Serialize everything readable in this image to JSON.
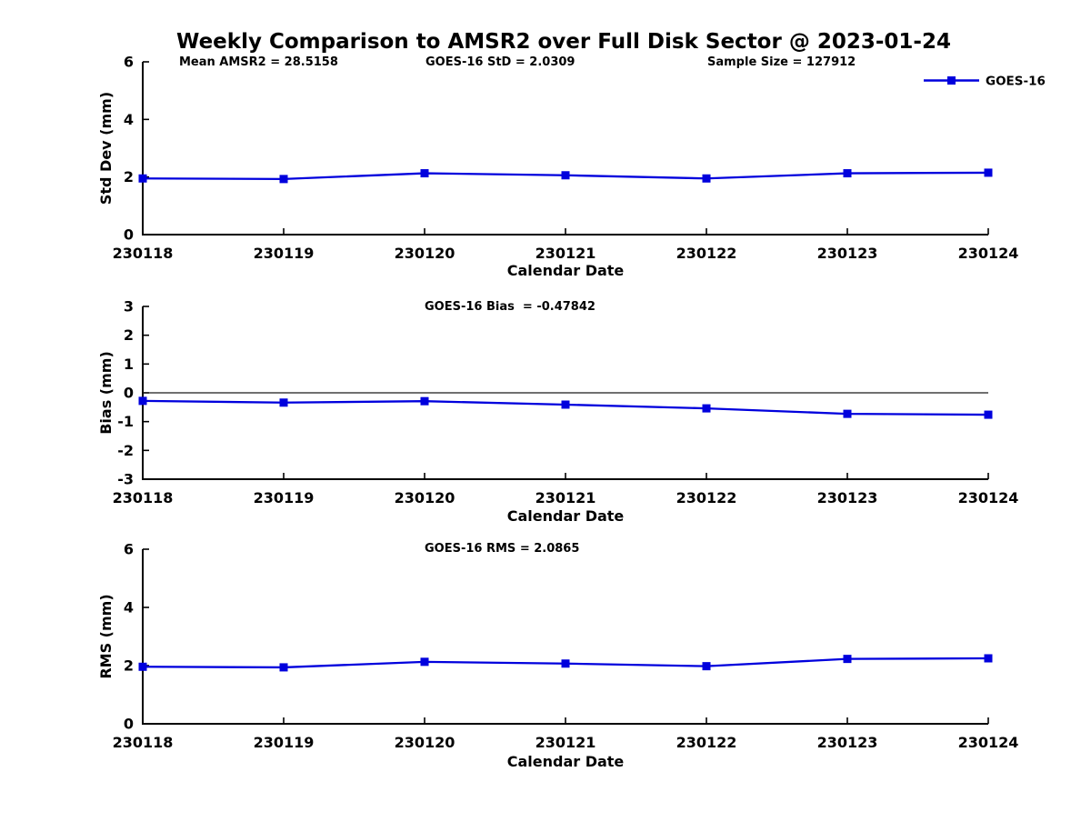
{
  "title": "Weekly Comparison to AMSR2 over Full Disk Sector @ 2023-01-24",
  "annotations": {
    "mean_amsr2": "Mean AMSR2 = 28.5158",
    "goes16_std": "GOES-16 StD = 2.0309",
    "sample_size": "Sample Size = 127912"
  },
  "legend": {
    "label": "GOES-16",
    "marker": "filled-square",
    "position": "top-right"
  },
  "colors": {
    "line": "#0000dd",
    "axis": "#000000",
    "background": "#ffffff"
  },
  "chart_data": [
    {
      "type": "line",
      "title": "",
      "ylabel": "Std Dev (mm)",
      "xlabel": "Calendar Date",
      "categories": [
        "230118",
        "230119",
        "230120",
        "230121",
        "230122",
        "230123",
        "230124"
      ],
      "series": [
        {
          "name": "GOES-16",
          "values": [
            1.95,
            1.93,
            2.13,
            2.06,
            1.95,
            2.13,
            2.15
          ]
        }
      ],
      "ylim": [
        0,
        6
      ],
      "yticks": [
        0,
        2,
        4,
        6
      ],
      "grid": false,
      "zero_line": false,
      "legend_position": "top-right"
    },
    {
      "type": "line",
      "title": "GOES-16 Bias  = -0.47842",
      "ylabel": "Bias (mm)",
      "xlabel": "Calendar Date",
      "categories": [
        "230118",
        "230119",
        "230120",
        "230121",
        "230122",
        "230123",
        "230124"
      ],
      "series": [
        {
          "name": "GOES-16",
          "values": [
            -0.28,
            -0.34,
            -0.29,
            -0.41,
            -0.54,
            -0.73,
            -0.76
          ]
        }
      ],
      "ylim": [
        -3,
        3
      ],
      "yticks": [
        3,
        2,
        1,
        0,
        -1,
        -2,
        -3
      ],
      "grid": false,
      "zero_line": true,
      "legend_position": "none"
    },
    {
      "type": "line",
      "title": "GOES-16 RMS = 2.0865",
      "ylabel": "RMS (mm)",
      "xlabel": "Calendar Date",
      "categories": [
        "230118",
        "230119",
        "230120",
        "230121",
        "230122",
        "230123",
        "230124"
      ],
      "series": [
        {
          "name": "GOES-16",
          "values": [
            1.96,
            1.94,
            2.13,
            2.07,
            1.98,
            2.23,
            2.25
          ]
        }
      ],
      "ylim": [
        0,
        6
      ],
      "yticks": [
        0,
        2,
        4,
        6
      ],
      "grid": false,
      "zero_line": false,
      "legend_position": "none"
    }
  ]
}
